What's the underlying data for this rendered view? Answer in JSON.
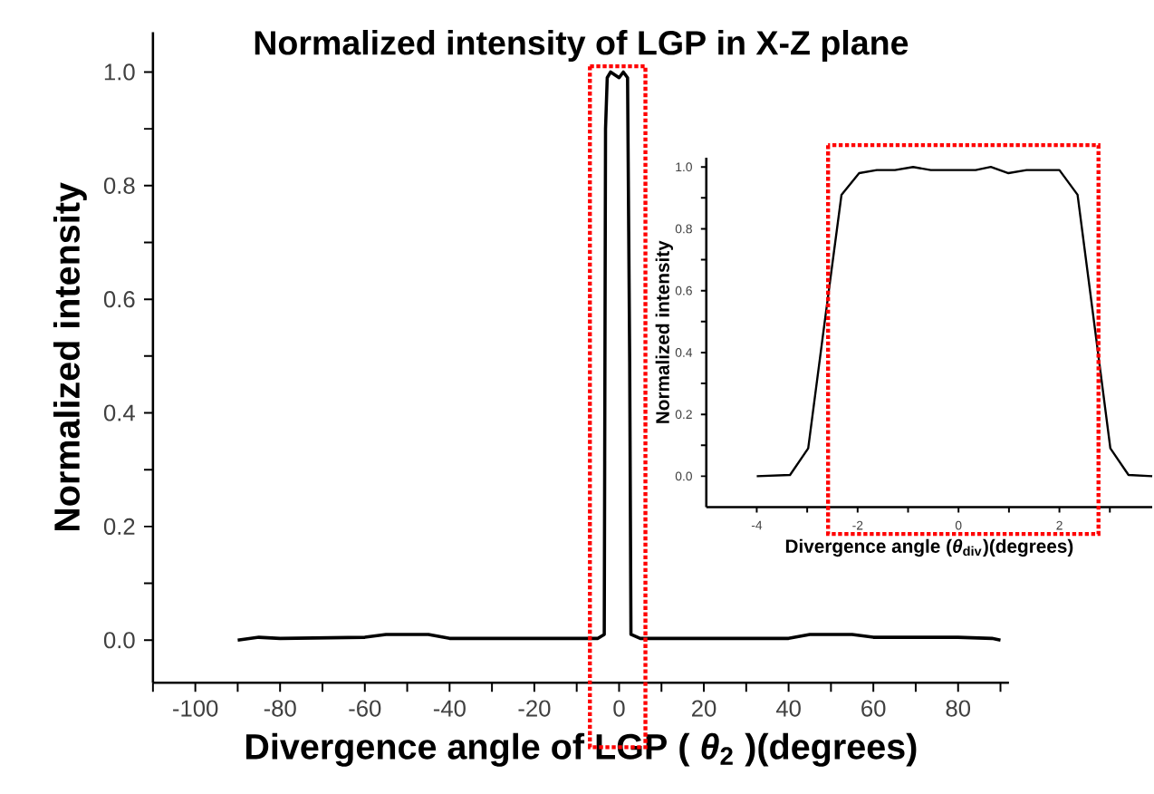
{
  "chart_data": [
    {
      "type": "line",
      "title": "Normalized intensity of LGP in X-Z plane",
      "xlabel": "Divergence angle of LGP ( *θ*$_{2}$ )(degrees)",
      "ylabel": "Normalized intensity",
      "xlim": [
        -110,
        92
      ],
      "ylim": [
        -0.075,
        1.07
      ],
      "xticks": [
        {
          "value": -110,
          "label": null
        },
        -100,
        {
          "value": -90,
          "label": null
        },
        -80,
        {
          "value": -70,
          "label": null
        },
        -60,
        {
          "value": -50,
          "label": null
        },
        -40,
        {
          "value": -30,
          "label": null
        },
        -20,
        {
          "value": -10,
          "label": null
        },
        0,
        {
          "value": 10,
          "label": null
        },
        20,
        {
          "value": 30,
          "label": null
        },
        40,
        {
          "value": 50,
          "label": null
        },
        60,
        {
          "value": 70,
          "label": null
        },
        80,
        {
          "value": 90,
          "label": null
        }
      ],
      "yticks": [
        {
          "value": 0,
          "label": "0.0"
        },
        {
          "value": 0.1,
          "label": null
        },
        {
          "value": 0.2,
          "label": "0.2"
        },
        {
          "value": 0.3,
          "label": null
        },
        {
          "value": 0.4,
          "label": "0.4"
        },
        {
          "value": 0.5,
          "label": null
        },
        {
          "value": 0.6,
          "label": "0.6"
        },
        {
          "value": 0.7,
          "label": null
        },
        {
          "value": 0.8,
          "label": "0.8"
        },
        {
          "value": 0.9,
          "label": null
        },
        {
          "value": 1,
          "label": "1.0"
        }
      ],
      "x": [
        -90,
        -85,
        -80,
        -60,
        -55,
        -45,
        -40,
        -5,
        -3.5,
        -3.2,
        -2.8,
        -2,
        0,
        1,
        2,
        2.5,
        2.8,
        5,
        40,
        45,
        55,
        60,
        70,
        80,
        88,
        90
      ],
      "values": [
        0,
        0.005,
        0.003,
        0.005,
        0.01,
        0.01,
        0.003,
        0.003,
        0.01,
        0.9,
        0.99,
        1.0,
        0.99,
        1.0,
        0.99,
        0.49,
        0.01,
        0.003,
        0.003,
        0.01,
        0.01,
        0.005,
        0.005,
        0.005,
        0.003,
        0
      ],
      "color": "#000000"
    },
    {
      "type": "line",
      "xlabel": "Divergence angle (*θ*$_{div}$)(degrees)",
      "ylabel": "Normalized intensity",
      "xlim": [
        -5,
        3.84
      ],
      "ylim": [
        -0.1,
        1.03
      ],
      "xticks": [
        -4,
        {
          "value": -3,
          "label": null
        },
        -2,
        {
          "value": -1,
          "label": null
        },
        0,
        {
          "value": 1,
          "label": null
        },
        2,
        {
          "value": 3,
          "label": null
        }
      ],
      "yticks": [
        {
          "value": 0,
          "label": "0.0"
        },
        {
          "value": 0.1,
          "label": null
        },
        {
          "value": 0.2,
          "label": "0.2"
        },
        {
          "value": 0.3,
          "label": null
        },
        {
          "value": 0.4,
          "label": "0.4"
        },
        {
          "value": 0.5,
          "label": null
        },
        {
          "value": 0.6,
          "label": "0.6"
        },
        {
          "value": 0.7,
          "label": null
        },
        {
          "value": 0.8,
          "label": "0.8"
        },
        {
          "value": 0.9,
          "label": null
        },
        {
          "value": 1,
          "label": "1.0"
        }
      ],
      "x": [
        -4,
        -3.34,
        -2.98,
        -2.66,
        -2.32,
        -1.97,
        -1.62,
        -1.26,
        -0.9,
        -0.55,
        -0.31,
        0.34,
        0.64,
        0.99,
        1.35,
        2,
        2.36,
        2.71,
        3.01,
        3.37,
        3.84
      ],
      "values": [
        0,
        0.004,
        0.09,
        0.49,
        0.91,
        0.98,
        0.99,
        0.99,
        1.0,
        0.99,
        0.99,
        0.99,
        1.0,
        0.98,
        0.99,
        0.99,
        0.91,
        0.47,
        0.09,
        0.004,
        0
      ],
      "color": "#000000"
    }
  ]
}
